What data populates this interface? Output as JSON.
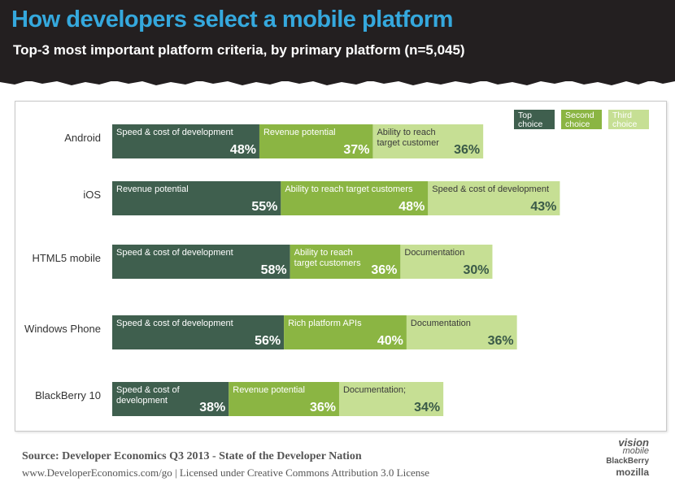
{
  "header": {
    "title": "How developers select a mobile platform",
    "subtitle": "Top-3 most important platform criteria, by primary platform (n=5,045)"
  },
  "chart_data": {
    "type": "bar",
    "stacked": true,
    "orientation": "horizontal",
    "title": "How developers select a mobile platform",
    "subtitle": "Top-3 most important platform criteria, by primary platform (n=5,045)",
    "categories": [
      "Android",
      "iOS",
      "HTML5 mobile",
      "Windows Phone",
      "BlackBerry 10"
    ],
    "legend": {
      "position": "top-right",
      "entries": [
        {
          "name": "Top\nchoice",
          "color": "#3f5f4e"
        },
        {
          "name": "Second\nchoice",
          "color": "#8bb543"
        },
        {
          "name": "Third\nchoice",
          "color": "#c6df94"
        }
      ]
    },
    "series": [
      {
        "name": "Top choice",
        "color": "#3f5f4e",
        "values": [
          48,
          55,
          58,
          56,
          38
        ],
        "labels": [
          "Speed & cost of development",
          "Revenue potential",
          "Speed & cost of development",
          "Speed & cost of development",
          "Speed & cost of\ndevelopment"
        ]
      },
      {
        "name": "Second choice",
        "color": "#8bb543",
        "values": [
          37,
          48,
          36,
          40,
          36
        ],
        "labels": [
          "Revenue potential",
          "Ability to reach target customers",
          "Ability to reach\ntarget customers",
          "Rich platform APIs",
          "Revenue potential"
        ]
      },
      {
        "name": "Third choice",
        "color": "#c6df94",
        "values": [
          36,
          43,
          30,
          36,
          34
        ],
        "labels": [
          "Ability to reach\ntarget customer",
          "Speed & cost of development",
          "Documentation",
          "Documentation",
          "Documentation;"
        ]
      }
    ],
    "value_suffix": "%",
    "xlim": [
      0,
      146
    ]
  },
  "footer": {
    "source": "Source: Developer Economics Q3 2013 - State of the Developer Nation",
    "license": "www.DeveloperEconomics.com/go | Licensed under Creative Commons Attribution 3.0 License"
  },
  "logos": {
    "vision": "vision",
    "mobile": "mobile",
    "blackberry": "BlackBerry",
    "mozilla": "mozilla"
  }
}
